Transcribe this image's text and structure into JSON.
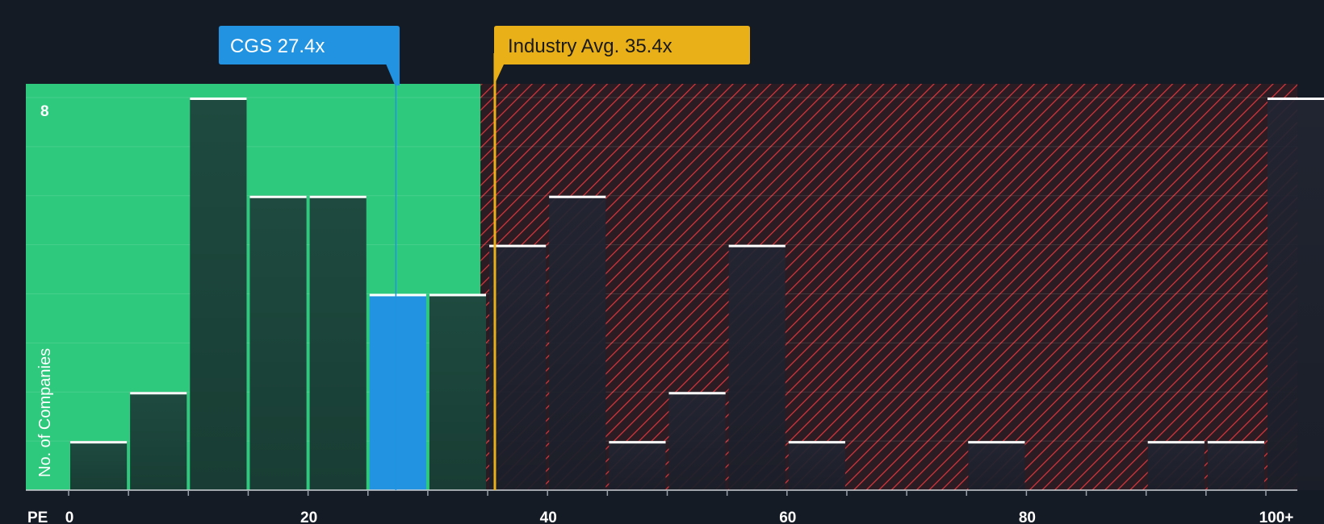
{
  "chart_data": {
    "type": "bar",
    "xlabel": "PE",
    "ylabel": "No. of Companies",
    "x_range": [
      0,
      100
    ],
    "x_ticks": [
      {
        "value": 0,
        "label": "0"
      },
      {
        "value": 20,
        "label": "20"
      },
      {
        "value": 40,
        "label": "40"
      },
      {
        "value": 60,
        "label": "60"
      },
      {
        "value": 80,
        "label": "80"
      },
      {
        "value": 100,
        "label": "100+"
      }
    ],
    "ylim": [
      0,
      8
    ],
    "y_ticks": [
      {
        "value": 8,
        "label": "8"
      }
    ],
    "bin_width": 5,
    "bins": [
      {
        "start": 0,
        "count": 1
      },
      {
        "start": 5,
        "count": 2
      },
      {
        "start": 10,
        "count": 8
      },
      {
        "start": 15,
        "count": 6
      },
      {
        "start": 20,
        "count": 6
      },
      {
        "start": 25,
        "count": 4,
        "highlight": true
      },
      {
        "start": 30,
        "count": 4
      },
      {
        "start": 35,
        "count": 5
      },
      {
        "start": 40,
        "count": 6
      },
      {
        "start": 45,
        "count": 1
      },
      {
        "start": 50,
        "count": 2
      },
      {
        "start": 55,
        "count": 5
      },
      {
        "start": 60,
        "count": 1
      },
      {
        "start": 65,
        "count": 0
      },
      {
        "start": 70,
        "count": 0
      },
      {
        "start": 75,
        "count": 1
      },
      {
        "start": 80,
        "count": 0
      },
      {
        "start": 85,
        "count": 0
      },
      {
        "start": 90,
        "count": 1
      },
      {
        "start": 95,
        "count": 1
      },
      {
        "start": 100,
        "count": 8
      }
    ],
    "fair_zone_end": 34,
    "company": {
      "label": "CGS 27.4x",
      "value": 27.4
    },
    "industry": {
      "label": "Industry Avg. 35.4x",
      "value": 35.4
    },
    "colors": {
      "background": "#151b24",
      "fair_zone": "#2ec97d",
      "bar_fair": "#1e4a3f",
      "bar_over": "#222633",
      "bar_highlight": "#2193e0",
      "hatch": "#d9353c",
      "hatch_bg": "#2a1c22",
      "company_box": "#2193e0",
      "industry_box": "#eab018",
      "industry_text": "#1a1a1a"
    }
  }
}
